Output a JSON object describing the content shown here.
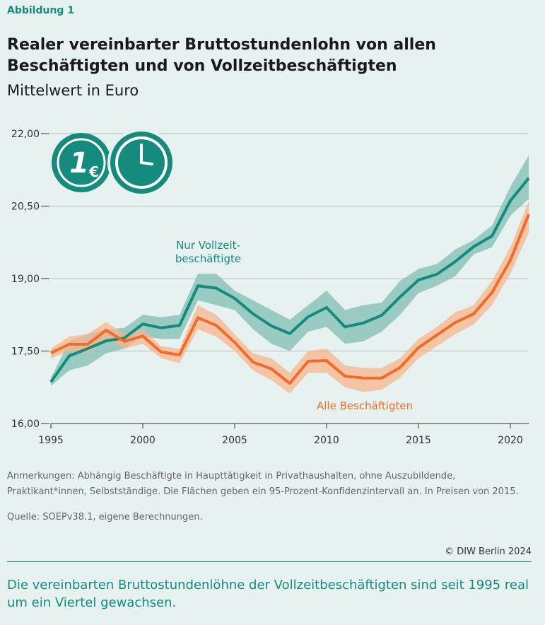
{
  "header": {
    "label": "Abbildung 1"
  },
  "chart_data": {
    "type": "band-line",
    "title": "Realer vereinbarter Bruttostundenlohn von allen Beschäftigten und von Vollzeitbeschäftigten",
    "subtitle": "Mittelwert in Euro",
    "icon_text": "1",
    "icon_currency": "€",
    "x": [
      1995,
      1996,
      1997,
      1998,
      1999,
      2000,
      2001,
      2002,
      2003,
      2004,
      2005,
      2006,
      2007,
      2008,
      2009,
      2010,
      2011,
      2012,
      2013,
      2014,
      2015,
      2016,
      2017,
      2018,
      2019,
      2020,
      2021
    ],
    "xlim": [
      1995,
      2021
    ],
    "xticks": [
      1995,
      2000,
      2005,
      2010,
      2015,
      2020
    ],
    "ylim": [
      16,
      22
    ],
    "yticks": [
      {
        "value": 16,
        "label": "16,00"
      },
      {
        "value": 17.5,
        "label": "17,50"
      },
      {
        "value": 19,
        "label": "19,00"
      },
      {
        "value": 20.5,
        "label": "20,50"
      },
      {
        "value": 22,
        "label": "22,00"
      }
    ],
    "grid": true,
    "series": [
      {
        "name": "Nur Vollzeit-beschäftigte",
        "color": "#148b7d",
        "band_color": "#7fbdb4",
        "values": [
          16.86,
          17.4,
          17.55,
          17.71,
          17.77,
          18.06,
          17.98,
          18.03,
          18.85,
          18.8,
          18.59,
          18.27,
          18.02,
          17.86,
          18.21,
          18.4,
          18.0,
          18.08,
          18.24,
          18.62,
          18.97,
          19.09,
          19.35,
          19.66,
          19.88,
          20.61,
          21.08
        ],
        "upper": [
          16.95,
          17.7,
          17.85,
          17.95,
          17.98,
          18.25,
          18.2,
          18.25,
          19.1,
          19.1,
          18.75,
          18.55,
          18.35,
          18.15,
          18.45,
          18.75,
          18.35,
          18.45,
          18.5,
          18.95,
          19.2,
          19.3,
          19.6,
          19.8,
          20.1,
          20.9,
          21.55
        ],
        "lower": [
          16.78,
          17.1,
          17.2,
          17.45,
          17.55,
          17.8,
          17.75,
          17.75,
          18.55,
          18.45,
          18.35,
          17.95,
          17.65,
          17.5,
          17.9,
          18.0,
          17.65,
          17.7,
          17.9,
          18.25,
          18.7,
          18.85,
          19.05,
          19.5,
          19.65,
          20.3,
          20.65
        ]
      },
      {
        "name": "Alle Beschäftigten",
        "color": "#f26b2a",
        "band_color": "#f8b68c",
        "values": [
          17.46,
          17.64,
          17.64,
          17.93,
          17.7,
          17.81,
          17.48,
          17.42,
          18.19,
          18.03,
          17.68,
          17.27,
          17.13,
          16.83,
          17.29,
          17.3,
          16.98,
          16.94,
          16.94,
          17.16,
          17.57,
          17.83,
          18.09,
          18.27,
          18.71,
          19.38,
          20.33
        ],
        "upper": [
          17.55,
          17.8,
          17.85,
          18.1,
          17.85,
          17.95,
          17.6,
          17.55,
          18.45,
          18.25,
          17.85,
          17.45,
          17.35,
          17.05,
          17.5,
          17.55,
          17.2,
          17.15,
          17.15,
          17.35,
          17.75,
          18.0,
          18.3,
          18.45,
          18.95,
          19.65,
          20.6
        ],
        "lower": [
          17.35,
          17.5,
          17.45,
          17.75,
          17.55,
          17.65,
          17.35,
          17.25,
          17.95,
          17.8,
          17.5,
          17.1,
          16.9,
          16.62,
          17.05,
          17.05,
          16.75,
          16.65,
          16.7,
          16.95,
          17.35,
          17.6,
          17.85,
          18.05,
          18.45,
          19.1,
          19.95
        ]
      }
    ]
  },
  "footer": {
    "notes": "Anmerkungen: Abhängig Beschäftigte in Haupttätigkeit in Privathaushalten, ohne Auszubildende, Praktikant*innen, Selbstständige. Die Flächen geben ein 95-Prozent-Konfidenzintervall an. In Preisen von 2015.",
    "source": "Quelle: SOEPv38.1, eigene Berechnungen.",
    "copyright": "© DIW Berlin 2024",
    "caption": "Die vereinbarten Bruttostundenlöhne der Vollzeitbeschäftigten sind seit 1995 real um ein Viertel gewachsen."
  }
}
